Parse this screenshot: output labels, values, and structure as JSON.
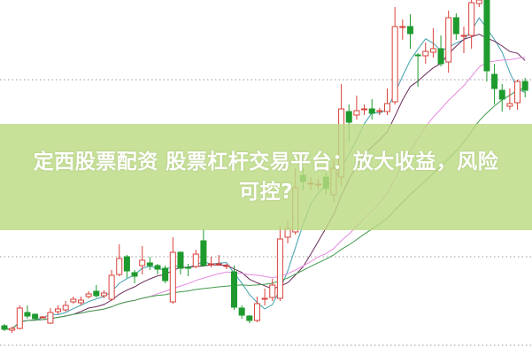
{
  "banner": {
    "line1": "定西股票配资 股票杠杆交易平台：放大收益，风险",
    "line2": "可控?"
  },
  "chart_data": {
    "type": "candlestick",
    "title": "",
    "xlabel": "",
    "ylabel": "",
    "grid": "horizontal dotted",
    "colors": {
      "up": "#d9403a",
      "down": "#1e9a2e",
      "ma_fast": "#3fa0b0",
      "ma_mid": "#6a2a5a",
      "ma_slow": "#e58ae0",
      "ma_long": "#3f9a4a",
      "grid": "#999999"
    },
    "ma_periods": [
      5,
      10,
      20,
      30
    ],
    "ohlc": [
      [
        32,
        34,
        26,
        28
      ],
      [
        27,
        31,
        24,
        29
      ],
      [
        29,
        55,
        28,
        52
      ],
      [
        47,
        55,
        40,
        43
      ],
      [
        45,
        46,
        38,
        40
      ],
      [
        42,
        43,
        41,
        42
      ],
      [
        35,
        52,
        34,
        47
      ],
      [
        48,
        55,
        45,
        51
      ],
      [
        50,
        60,
        48,
        55
      ],
      [
        59,
        65,
        57,
        62
      ],
      [
        58,
        65,
        55,
        61
      ],
      [
        65,
        71,
        63,
        68
      ],
      [
        71,
        78,
        64,
        66
      ],
      [
        66,
        72,
        63,
        69
      ],
      [
        62,
        95,
        60,
        89
      ],
      [
        90,
        124,
        88,
        108
      ],
      [
        110,
        112,
        86,
        94
      ],
      [
        92,
        95,
        80,
        88
      ],
      [
        100,
        122,
        90,
        106
      ],
      [
        103,
        110,
        95,
        100
      ],
      [
        100,
        102,
        90,
        96
      ],
      [
        97,
        100,
        80,
        83
      ],
      [
        59,
        132,
        57,
        115
      ],
      [
        115,
        116,
        90,
        97
      ],
      [
        98,
        102,
        88,
        97
      ],
      [
        99,
        118,
        97,
        113
      ],
      [
        128,
        142,
        100,
        100
      ],
      [
        102,
        110,
        98,
        102
      ],
      [
        102,
        112,
        100,
        102
      ],
      [
        100,
        102,
        96,
        100
      ],
      [
        93,
        100,
        50,
        53
      ],
      [
        52,
        55,
        40,
        44
      ],
      [
        43,
        44,
        35,
        38
      ],
      [
        38,
        65,
        36,
        57
      ],
      [
        63,
        74,
        55,
        63
      ],
      [
        64,
        85,
        60,
        78
      ],
      [
        63,
        145,
        60,
        130
      ],
      [
        132,
        150,
        125,
        142
      ],
      [
        138,
        210,
        135,
        188
      ],
      [
        202,
        210,
        185,
        195
      ],
      [
        193,
        200,
        185,
        193
      ],
      [
        192,
        198,
        185,
        192
      ],
      [
        200,
        205,
        180,
        187
      ],
      [
        180,
        220,
        172,
        210
      ],
      [
        200,
        305,
        190,
        277
      ],
      [
        274,
        282,
        240,
        262
      ],
      [
        270,
        292,
        265,
        275
      ],
      [
        277,
        282,
        270,
        277
      ],
      [
        277,
        288,
        265,
        272
      ],
      [
        275,
        278,
        270,
        275
      ],
      [
        274,
        300,
        270,
        283
      ],
      [
        285,
        392,
        282,
        370
      ],
      [
        370,
        378,
        355,
        370
      ],
      [
        370,
        384,
        345,
        362
      ],
      [
        338,
        340,
        302,
        337
      ],
      [
        337,
        352,
        328,
        342
      ],
      [
        341,
        368,
        335,
        345
      ],
      [
        345,
        360,
        325,
        328
      ],
      [
        330,
        388,
        318,
        380
      ],
      [
        380,
        385,
        355,
        362
      ],
      [
        360,
        370,
        340,
        360
      ],
      [
        360,
        400,
        345,
        397
      ],
      [
        396,
        400,
        392,
        400
      ],
      [
        400,
        400,
        308,
        320
      ],
      [
        316,
        328,
        282,
        300
      ],
      [
        298,
        305,
        274,
        288
      ],
      [
        280,
        300,
        276,
        283
      ],
      [
        284,
        310,
        276,
        308
      ],
      [
        308,
        312,
        290,
        298
      ]
    ]
  }
}
